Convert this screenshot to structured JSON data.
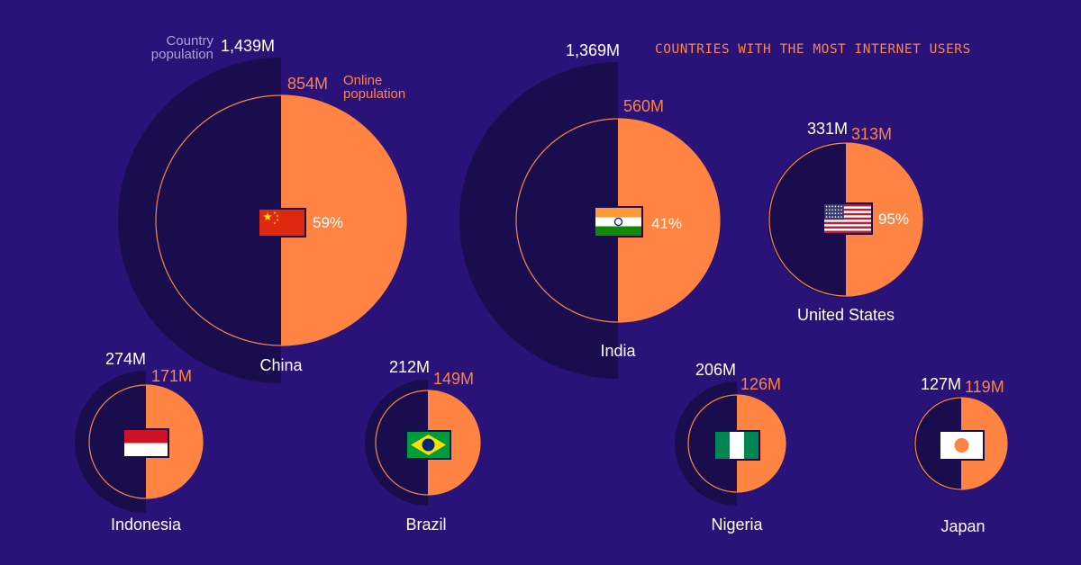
{
  "title": "COUNTRIES WITH THE MOST INTERNET USERS",
  "legend": {
    "country_population": "Country population",
    "online_population": "Online population"
  },
  "colors": {
    "background": "#2a1378",
    "country_fill": "#190d4d",
    "online_fill": "#ff8443",
    "online_outline": "#ff8443",
    "country_text": "#ffffff",
    "online_text": "#ff8443",
    "percent_text": "#ffffff"
  },
  "chart_data": {
    "type": "nested-semicircle",
    "unit": "M",
    "countries": [
      {
        "name": "China",
        "population": "1,439M",
        "population_value": 1439,
        "online": "854M",
        "online_value": 854,
        "percent": "59%",
        "percent_value": 59,
        "flag": "china-flag"
      },
      {
        "name": "India",
        "population": "1,369M",
        "population_value": 1369,
        "online": "560M",
        "online_value": 560,
        "percent": "41%",
        "percent_value": 41,
        "flag": "india-flag"
      },
      {
        "name": "United States",
        "population": "331M",
        "population_value": 331,
        "online": "313M",
        "online_value": 313,
        "percent": "95%",
        "percent_value": 95,
        "flag": "usa-flag"
      },
      {
        "name": "Indonesia",
        "population": "274M",
        "population_value": 274,
        "online": "171M",
        "online_value": 171,
        "percent": "",
        "percent_value": 62,
        "flag": "indonesia-flag"
      },
      {
        "name": "Brazil",
        "population": "212M",
        "population_value": 212,
        "online": "149M",
        "online_value": 149,
        "percent": "",
        "percent_value": 70,
        "flag": "brazil-flag"
      },
      {
        "name": "Nigeria",
        "population": "206M",
        "population_value": 206,
        "online": "126M",
        "online_value": 126,
        "percent": "",
        "percent_value": 61,
        "flag": "nigeria-flag"
      },
      {
        "name": "Japan",
        "population": "127M",
        "population_value": 127,
        "online": "119M",
        "online_value": 119,
        "percent": "",
        "percent_value": 94,
        "flag": "japan-flag"
      }
    ]
  }
}
